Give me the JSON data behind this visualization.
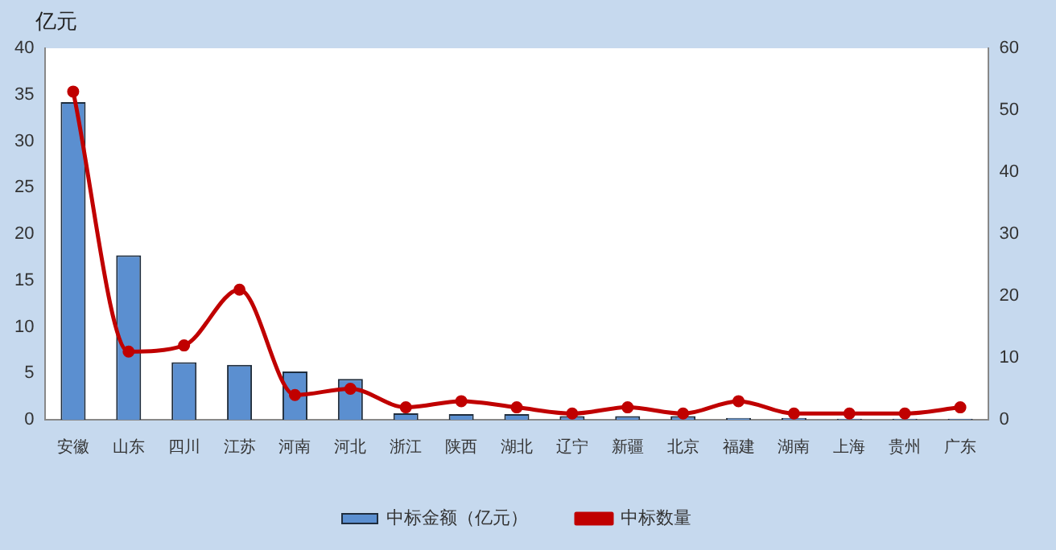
{
  "chart_data": {
    "type": "bar",
    "ylabel": "亿元",
    "categories": [
      "安徽",
      "山东",
      "四川",
      "江苏",
      "河南",
      "河北",
      "浙江",
      "陕西",
      "湖北",
      "辽宁",
      "新疆",
      "北京",
      "福建",
      "湖南",
      "上海",
      "贵州",
      "广东"
    ],
    "series": [
      {
        "name": "中标金额（亿元）",
        "color": "#5b8fd0",
        "values": [
          34.2,
          17.7,
          6.2,
          5.9,
          5.2,
          4.4,
          0.7,
          0.6,
          0.6,
          0.4,
          0.4,
          0.4,
          0.2,
          0.2,
          0.1,
          0.1,
          0.1
        ]
      },
      {
        "name": "中标数量",
        "type": "line",
        "axis": "y2",
        "color": "#c00000",
        "marker": "circle",
        "values": [
          53,
          11,
          12,
          21,
          4,
          5,
          2,
          3,
          2,
          1,
          2,
          1,
          3,
          1,
          1,
          1,
          2
        ]
      }
    ],
    "ylim": [
      0,
      40
    ],
    "yticks": [
      0,
      5,
      10,
      15,
      20,
      25,
      30,
      35,
      40
    ],
    "y2lim": [
      0,
      60
    ],
    "y2ticks": [
      0,
      10,
      20,
      30,
      40,
      50,
      60
    ],
    "grid": false,
    "legend": "bottom"
  }
}
